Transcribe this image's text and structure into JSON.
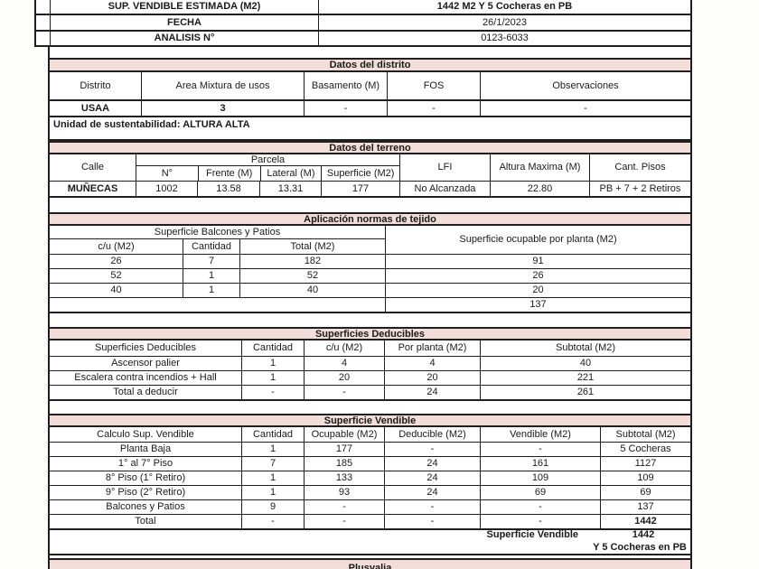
{
  "top_table": {
    "rows": [
      {
        "label": "SUP. VENDIBLE ESTIMADA (M2)",
        "value": "1442 M2 Y 5 Cocheras en PB"
      },
      {
        "label": "FECHA",
        "value": "26/1/2023"
      },
      {
        "label": "ANALISIS N°",
        "value": "0123-6033"
      }
    ]
  },
  "distrito": {
    "title": "Datos del distrito",
    "headers": [
      "Distrito",
      "Area Mixtura de usos",
      "Basamento (M)",
      "FOS",
      "Observaciones"
    ],
    "values": [
      "USAA",
      "3",
      "-",
      "-",
      "-"
    ],
    "note": "Unidad de sustentabilidad: ALTURA ALTA"
  },
  "terreno": {
    "title": "Datos del terreno",
    "col_calle": "Calle",
    "group_parcela": "Parcela",
    "sub_headers": [
      "N°",
      "Frente (M)",
      "Lateral (M)",
      "Superficie (M2)"
    ],
    "col_lfi": "LFI",
    "col_altura": "Altura Maxima (M)",
    "col_pisos": "Cant. Pisos",
    "values": [
      "MUÑECAS",
      "1002",
      "13.58",
      "13.31",
      "177",
      "No Alcanzada",
      "22.80",
      "PB + 7 + 2 Retiros"
    ]
  },
  "tejido": {
    "title": "Aplicación normas de tejido",
    "group_left": "Superficie Balcones y Patios",
    "sub_headers": [
      "c/u (M2)",
      "Cantidad",
      "Total (M2)"
    ],
    "col_right": "Superficie ocupable por planta (M2)",
    "rows": [
      [
        "26",
        "7",
        "182",
        "91"
      ],
      [
        "52",
        "1",
        "52",
        "26"
      ],
      [
        "40",
        "1",
        "40",
        "20"
      ]
    ],
    "total_right": "137"
  },
  "deducibles": {
    "title": "Superficies Deducibles",
    "headers": [
      "Superficies Deducibles",
      "Cantidad",
      "c/u (M2)",
      "Por planta (M2)",
      "Subtotal (M2)"
    ],
    "rows": [
      [
        "Ascensor palier",
        "1",
        "4",
        "4",
        "40"
      ],
      [
        "Escalera contra incendios + Hall",
        "1",
        "20",
        "20",
        "221"
      ],
      [
        "Total a deducir",
        "-",
        "-",
        "24",
        "261"
      ]
    ]
  },
  "vendible": {
    "title": "Superficie Vendible",
    "headers": [
      "Calculo Sup. Vendible",
      "Cantidad",
      "Ocupable (M2)",
      "Deducible (M2)",
      "Vendible (M2)",
      "Subtotal (M2)"
    ],
    "rows": [
      [
        "Planta Baja",
        "1",
        "177",
        "-",
        "-",
        "5 Cocheras"
      ],
      [
        "1° al 7° Piso",
        "7",
        "185",
        "24",
        "161",
        "1127"
      ],
      [
        "8° Piso (1° Retiro)",
        "1",
        "133",
        "24",
        "109",
        "109"
      ],
      [
        "9° Piso (2° Retiro)",
        "1",
        "93",
        "24",
        "69",
        "69"
      ],
      [
        "Balcones y Patios",
        "9",
        "-",
        "-",
        "-",
        "137"
      ],
      [
        "Total",
        "-",
        "-",
        "-",
        "-",
        "1442"
      ]
    ],
    "summary_label": "Superficie Vendible",
    "summary_value": "1442",
    "summary_note": "Y 5 Cocheras en PB"
  },
  "plusvalia": {
    "title": "Plusvalia"
  }
}
